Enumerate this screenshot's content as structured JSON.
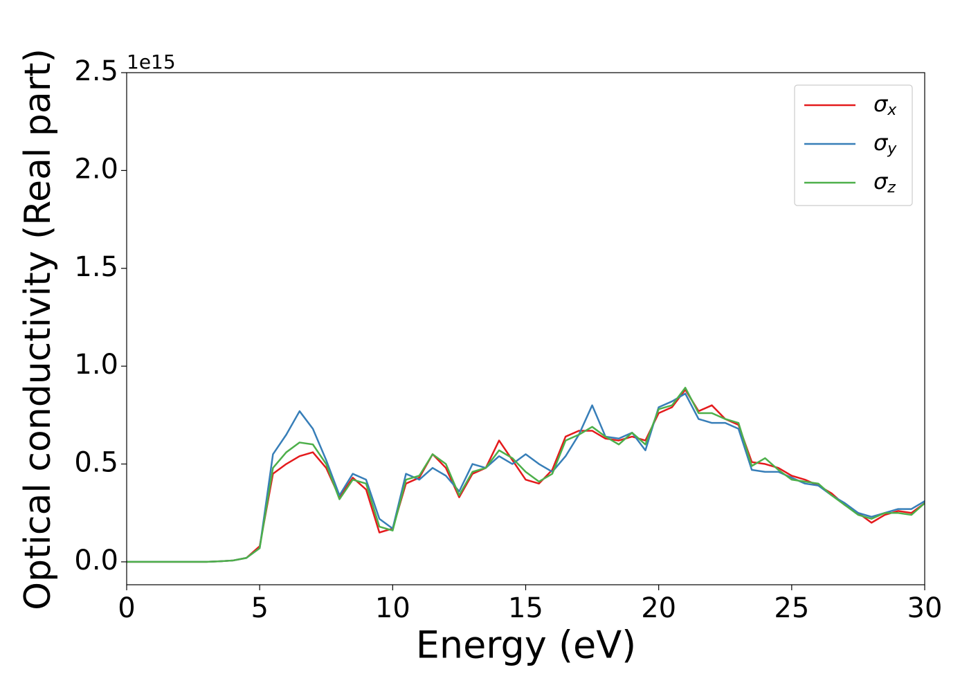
{
  "chart_data": {
    "type": "line",
    "xlabel": "Energy (eV)",
    "ylabel": "Optical conductivity (Real part)",
    "y_offset_label": "1e15",
    "x": [
      0,
      0.5,
      1,
      1.5,
      2,
      2.5,
      3,
      3.5,
      4,
      4.5,
      5,
      5.5,
      6,
      6.5,
      7,
      7.5,
      8,
      8.5,
      9,
      9.5,
      10,
      10.5,
      11,
      11.5,
      12,
      12.5,
      13,
      13.5,
      14,
      14.5,
      15,
      15.5,
      16,
      16.5,
      17,
      17.5,
      18,
      18.5,
      19,
      19.5,
      20,
      20.5,
      21,
      21.5,
      22,
      22.5,
      23,
      23.5,
      24,
      24.5,
      25,
      25.5,
      26,
      26.5,
      27,
      27.5,
      28,
      28.5,
      29,
      29.5,
      30
    ],
    "series": [
      {
        "name": "σx",
        "color": "#e41a1c",
        "values": [
          0,
          0,
          0,
          0,
          0,
          0,
          0,
          0.003,
          0.007,
          0.02,
          0.08,
          0.45,
          0.5,
          0.54,
          0.56,
          0.48,
          0.33,
          0.43,
          0.37,
          0.15,
          0.17,
          0.4,
          0.43,
          0.55,
          0.48,
          0.33,
          0.45,
          0.48,
          0.62,
          0.52,
          0.42,
          0.4,
          0.47,
          0.64,
          0.67,
          0.67,
          0.63,
          0.62,
          0.64,
          0.62,
          0.76,
          0.79,
          0.88,
          0.77,
          0.8,
          0.73,
          0.7,
          0.51,
          0.5,
          0.48,
          0.44,
          0.42,
          0.39,
          0.35,
          0.29,
          0.25,
          0.2,
          0.24,
          0.26,
          0.25,
          0.3
        ]
      },
      {
        "name": "σy",
        "color": "#377eb8",
        "values": [
          0,
          0,
          0,
          0,
          0,
          0,
          0,
          0.003,
          0.007,
          0.02,
          0.07,
          0.55,
          0.65,
          0.77,
          0.68,
          0.52,
          0.34,
          0.45,
          0.42,
          0.22,
          0.17,
          0.45,
          0.42,
          0.48,
          0.44,
          0.36,
          0.5,
          0.48,
          0.54,
          0.5,
          0.55,
          0.5,
          0.46,
          0.54,
          0.65,
          0.8,
          0.64,
          0.63,
          0.66,
          0.57,
          0.79,
          0.82,
          0.86,
          0.73,
          0.71,
          0.71,
          0.68,
          0.47,
          0.46,
          0.46,
          0.43,
          0.4,
          0.39,
          0.34,
          0.3,
          0.25,
          0.23,
          0.25,
          0.27,
          0.27,
          0.31
        ]
      },
      {
        "name": "σz",
        "color": "#4daf4a",
        "values": [
          0,
          0,
          0,
          0,
          0,
          0,
          0,
          0.003,
          0.007,
          0.02,
          0.07,
          0.48,
          0.56,
          0.61,
          0.6,
          0.5,
          0.32,
          0.42,
          0.4,
          0.18,
          0.16,
          0.42,
          0.44,
          0.55,
          0.5,
          0.34,
          0.46,
          0.48,
          0.57,
          0.53,
          0.46,
          0.41,
          0.45,
          0.62,
          0.65,
          0.69,
          0.64,
          0.6,
          0.66,
          0.6,
          0.78,
          0.8,
          0.89,
          0.76,
          0.76,
          0.73,
          0.71,
          0.49,
          0.53,
          0.47,
          0.42,
          0.41,
          0.4,
          0.34,
          0.29,
          0.24,
          0.22,
          0.25,
          0.25,
          0.24,
          0.3
        ]
      }
    ],
    "xlim": [
      0,
      30
    ],
    "xticks": [
      0,
      5,
      10,
      15,
      20,
      25,
      30
    ],
    "ylim": [
      -0.117,
      2.5
    ],
    "yticks": [
      {
        "value": 0,
        "label": "0.0"
      },
      {
        "value": 0.5,
        "label": "0.5"
      },
      {
        "value": 1,
        "label": "1.0"
      },
      {
        "value": 1.5,
        "label": "1.5"
      },
      {
        "value": 2,
        "label": "2.0"
      },
      {
        "value": 2.5,
        "label": "2.5"
      }
    ],
    "grid": false,
    "legend": "upper right"
  }
}
